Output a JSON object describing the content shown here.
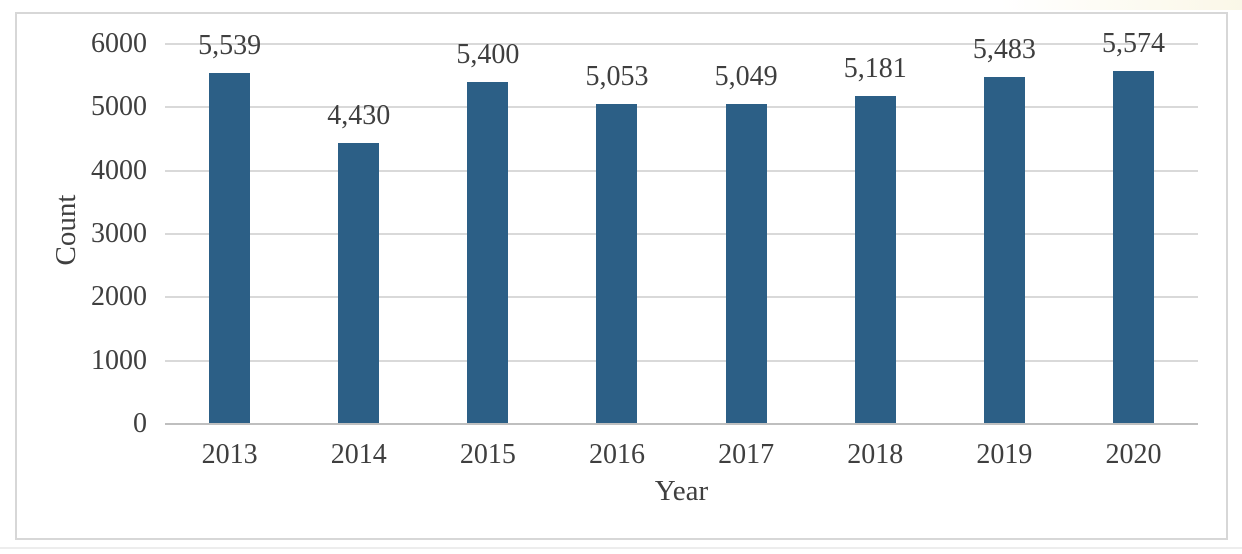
{
  "page": {
    "background": "#FFFFFF"
  },
  "chart_data": {
    "type": "bar",
    "categories": [
      "2013",
      "2014",
      "2015",
      "2016",
      "2017",
      "2018",
      "2019",
      "2020"
    ],
    "values": [
      5539,
      4430,
      5400,
      5053,
      5049,
      5181,
      5483,
      5574
    ],
    "data_labels": [
      "5,539",
      "4,430",
      "5,400",
      "5,053",
      "5,049",
      "5,181",
      "5,483",
      "5,574"
    ],
    "title": "",
    "xlabel": "Year",
    "ylabel": "Count",
    "ylim": [
      0,
      6000
    ],
    "ytick_interval": 1000,
    "ytick_labels": [
      "0",
      "1000",
      "2000",
      "3000",
      "4000",
      "5000",
      "6000"
    ],
    "legend": "none",
    "grid": "horizontal",
    "colors": {
      "bar": "#2C5F86",
      "gridline": "#D9D9D9",
      "axis_line": "#BFBFBF",
      "text": "#3F3F3F",
      "frame_border": "#D7D7D7"
    }
  }
}
